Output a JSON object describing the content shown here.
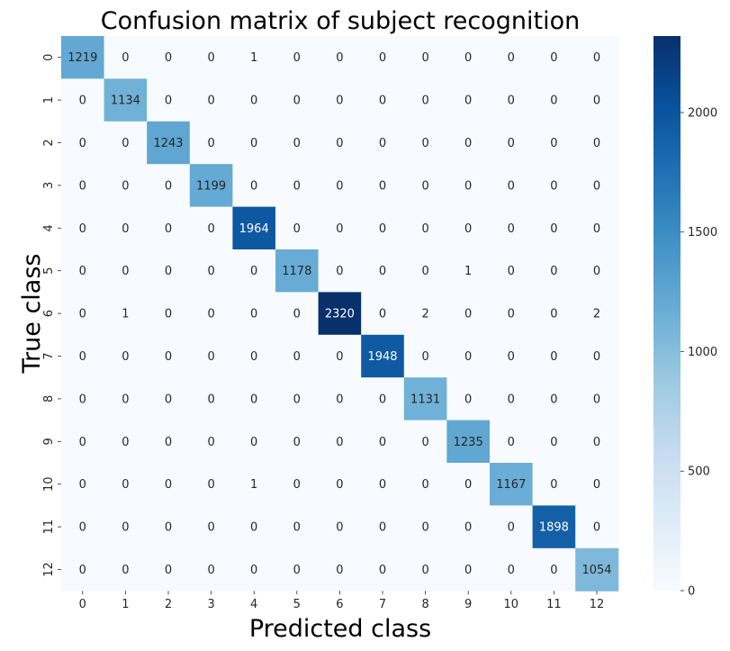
{
  "chart_data": {
    "type": "heatmap",
    "title": "Confusion matrix of subject recognition",
    "xlabel": "Predicted class",
    "ylabel": "True class",
    "x_categories": [
      "0",
      "1",
      "2",
      "3",
      "4",
      "5",
      "6",
      "7",
      "8",
      "9",
      "10",
      "11",
      "12"
    ],
    "y_categories": [
      "0",
      "1",
      "2",
      "3",
      "4",
      "5",
      "6",
      "7",
      "8",
      "9",
      "10",
      "11",
      "12"
    ],
    "values": [
      [
        1219,
        0,
        0,
        0,
        1,
        0,
        0,
        0,
        0,
        0,
        0,
        0,
        0
      ],
      [
        0,
        1134,
        0,
        0,
        0,
        0,
        0,
        0,
        0,
        0,
        0,
        0,
        0
      ],
      [
        0,
        0,
        1243,
        0,
        0,
        0,
        0,
        0,
        0,
        0,
        0,
        0,
        0
      ],
      [
        0,
        0,
        0,
        1199,
        0,
        0,
        0,
        0,
        0,
        0,
        0,
        0,
        0
      ],
      [
        0,
        0,
        0,
        0,
        1964,
        0,
        0,
        0,
        0,
        0,
        0,
        0,
        0
      ],
      [
        0,
        0,
        0,
        0,
        0,
        1178,
        0,
        0,
        0,
        1,
        0,
        0,
        0
      ],
      [
        0,
        1,
        0,
        0,
        0,
        0,
        2320,
        0,
        2,
        0,
        0,
        0,
        2
      ],
      [
        0,
        0,
        0,
        0,
        0,
        0,
        0,
        1948,
        0,
        0,
        0,
        0,
        0
      ],
      [
        0,
        0,
        0,
        0,
        0,
        0,
        0,
        0,
        1131,
        0,
        0,
        0,
        0
      ],
      [
        0,
        0,
        0,
        0,
        0,
        0,
        0,
        0,
        0,
        1235,
        0,
        0,
        0
      ],
      [
        0,
        0,
        0,
        0,
        1,
        0,
        0,
        0,
        0,
        0,
        1167,
        0,
        0
      ],
      [
        0,
        0,
        0,
        0,
        0,
        0,
        0,
        0,
        0,
        0,
        0,
        1898,
        0
      ],
      [
        0,
        0,
        0,
        0,
        0,
        0,
        0,
        0,
        0,
        0,
        0,
        0,
        1054
      ]
    ],
    "colormap": "Blues",
    "colorbar": {
      "min": 0,
      "max": 2320,
      "ticks": [
        0,
        500,
        1000,
        1500,
        2000
      ]
    },
    "colormap_stops": [
      "#f7fbff",
      "#deebf7",
      "#c6dbef",
      "#9ecae1",
      "#6baed6",
      "#4292c6",
      "#2171b5",
      "#08519c",
      "#08306b"
    ]
  }
}
